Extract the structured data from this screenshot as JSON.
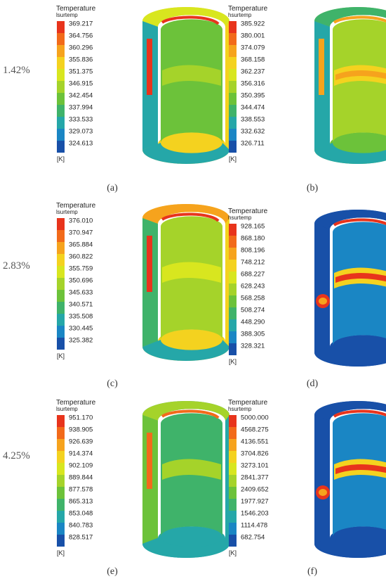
{
  "row_labels": [
    "1.42%",
    "2.83%",
    "4.25%"
  ],
  "panels": [
    {
      "caption": "(a)",
      "title": "Temperature",
      "variable": "lsurtemp",
      "unit": "[K]",
      "ticks": [
        "369.217",
        "364.756",
        "360.296",
        "355.836",
        "351.375",
        "346.915",
        "342.454",
        "337.994",
        "333.533",
        "329.073",
        "324.613"
      ],
      "scheme": "yellow-low"
    },
    {
      "caption": "(b)",
      "title": "Temperature",
      "variable": "hsurtemp",
      "unit": "[K]",
      "ticks": [
        "385.922",
        "380.001",
        "374.079",
        "368.158",
        "362.237",
        "356.316",
        "350.395",
        "344.474",
        "338.553",
        "332.632",
        "326.711"
      ],
      "scheme": "green-band"
    },
    {
      "caption": "(c)",
      "title": "Temperature",
      "variable": "lsurtemp",
      "unit": "[K]",
      "ticks": [
        "376.010",
        "370.947",
        "365.884",
        "360.822",
        "355.759",
        "350.696",
        "345.633",
        "340.571",
        "335.508",
        "330.445",
        "325.382"
      ],
      "scheme": "orange-high"
    },
    {
      "caption": "(d)",
      "title": "Temperature",
      "variable": "hsurtemp",
      "unit": "[K]",
      "ticks": [
        "928.165",
        "868.180",
        "808.196",
        "748.212",
        "688.227",
        "628.243",
        "568.258",
        "508.274",
        "448.290",
        "388.305",
        "328.321"
      ],
      "scheme": "blue-band"
    },
    {
      "caption": "(e)",
      "title": "Temperature",
      "variable": "lsurtemp",
      "unit": "[K]",
      "ticks": [
        "951.170",
        "938.905",
        "926.639",
        "914.374",
        "902.109",
        "889.844",
        "877.578",
        "865.313",
        "853.048",
        "840.783",
        "828.517"
      ],
      "scheme": "cyan-low"
    },
    {
      "caption": "(f)",
      "title": "Temperature",
      "variable": "hsurtemp",
      "unit": "[K]",
      "ticks": [
        "5000.000",
        "4568.275",
        "4136.551",
        "3704.826",
        "3273.101",
        "2841.377",
        "2409.652",
        "1977.927",
        "1546.203",
        "1114.478",
        "682.754"
      ],
      "scheme": "blue-band"
    }
  ],
  "colormap": [
    "#e8341c",
    "#f26a1a",
    "#f6a31d",
    "#f4d21f",
    "#d8e61f",
    "#a5d32a",
    "#6cc23a",
    "#3fb36a",
    "#25a7a8",
    "#1a86c4",
    "#1850a8"
  ]
}
